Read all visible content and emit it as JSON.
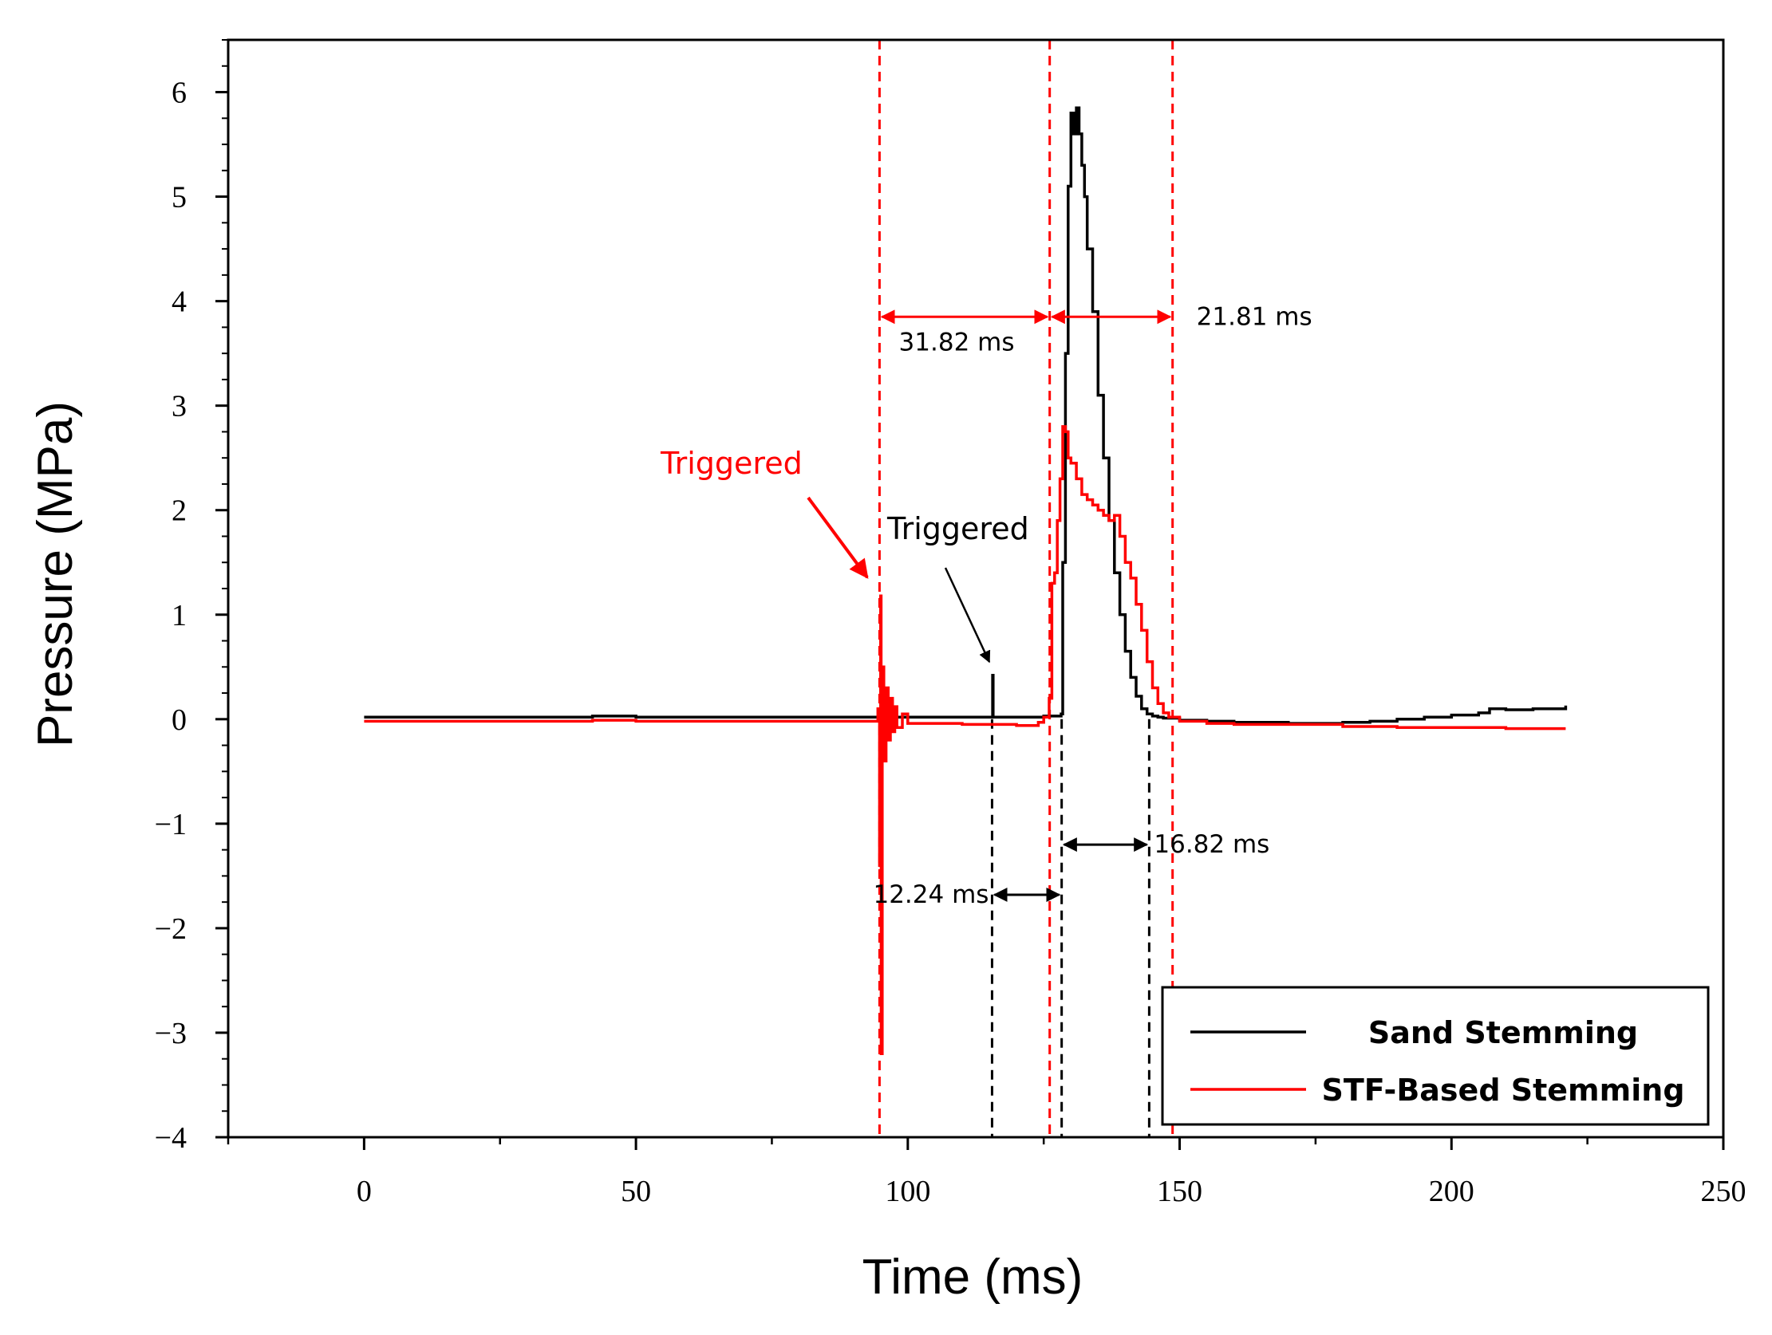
{
  "chart_data": {
    "type": "line",
    "title": "",
    "xlabel": "Time (ms)",
    "ylabel": "Pressure (MPa)",
    "xlim": [
      -25,
      250
    ],
    "ylim": [
      -4,
      6.5
    ],
    "xticks": [
      0,
      50,
      100,
      150,
      200,
      250
    ],
    "xtick_labels": [
      "0",
      "50",
      "100",
      "150",
      "200",
      "250"
    ],
    "yticks": [
      -4,
      -3,
      -2,
      -1,
      0,
      1,
      2,
      3,
      4,
      5,
      6
    ],
    "ytick_labels": [
      "−4",
      "−3",
      "−2",
      "−1",
      "0",
      "1",
      "2",
      "3",
      "4",
      "5",
      "6"
    ],
    "grid": false,
    "legend_position": "bottom-right",
    "colors": {
      "sand": "#000000",
      "stf": "#ff0000"
    },
    "series": [
      {
        "name": "Sand Stemming",
        "color": "#000000",
        "x": [
          0,
          20,
          40,
          42,
          50,
          60,
          70,
          80,
          90,
          95,
          100,
          110,
          115.5,
          115.6,
          115.7,
          116,
          120,
          125,
          127,
          128.2,
          128.5,
          129,
          129.5,
          130,
          130.5,
          131,
          131.5,
          132,
          132.5,
          133,
          134,
          135,
          136,
          137,
          138,
          139,
          140,
          141,
          142,
          143,
          144,
          145,
          146,
          147,
          150,
          155,
          160,
          170,
          180,
          185,
          190,
          195,
          200,
          205,
          207,
          210,
          215,
          221
        ],
        "y": [
          0.02,
          0.02,
          0.02,
          0.03,
          0.02,
          0.02,
          0.02,
          0.02,
          0.02,
          0.02,
          0.02,
          0.02,
          0.02,
          0.42,
          0.02,
          0.02,
          0.02,
          0.03,
          0.03,
          0.05,
          1.5,
          3.5,
          5.1,
          5.8,
          5.6,
          5.85,
          5.6,
          5.3,
          5.0,
          4.5,
          3.9,
          3.1,
          2.5,
          1.9,
          1.4,
          1.0,
          0.65,
          0.4,
          0.22,
          0.1,
          0.05,
          0.03,
          0.02,
          0.01,
          -0.01,
          -0.02,
          -0.03,
          -0.04,
          -0.03,
          -0.02,
          0.0,
          0.02,
          0.04,
          0.06,
          0.1,
          0.09,
          0.1,
          0.13
        ]
      },
      {
        "name": "STF-Based Stemming",
        "color": "#ff0000",
        "x": [
          0,
          20,
          40,
          42,
          50,
          60,
          70,
          80,
          90,
          94,
          94.5,
          94.8,
          95.0,
          95.1,
          95.3,
          95.6,
          96,
          96.4,
          96.8,
          97.2,
          97.6,
          98,
          99,
          100,
          110,
          120,
          124,
          125,
          126,
          126.5,
          127,
          127.5,
          128,
          128.5,
          129,
          129.5,
          130,
          131,
          132,
          133,
          134,
          135,
          136,
          137,
          138,
          139,
          140,
          141,
          142,
          143,
          144,
          145,
          146,
          147,
          148,
          150,
          155,
          160,
          170,
          180,
          190,
          200,
          210,
          221
        ],
        "y": [
          -0.02,
          -0.02,
          -0.02,
          -0.01,
          -0.02,
          -0.02,
          -0.02,
          -0.02,
          -0.02,
          -0.02,
          0.1,
          -1.4,
          1.18,
          -3.2,
          0.5,
          -0.4,
          0.3,
          -0.2,
          0.2,
          -0.12,
          0.12,
          -0.08,
          0.05,
          -0.04,
          -0.05,
          -0.06,
          -0.03,
          0.02,
          0.2,
          1.3,
          1.4,
          1.9,
          2.3,
          2.8,
          2.75,
          2.5,
          2.45,
          2.3,
          2.15,
          2.1,
          2.05,
          2.0,
          1.95,
          1.9,
          1.95,
          1.75,
          1.5,
          1.35,
          1.1,
          0.85,
          0.55,
          0.3,
          0.15,
          0.06,
          0.02,
          -0.02,
          -0.04,
          -0.05,
          -0.05,
          -0.07,
          -0.08,
          -0.08,
          -0.09,
          -0.09
        ]
      }
    ],
    "markers": {
      "red_dashed_lines_x": [
        94.8,
        126.1,
        148.7
      ],
      "black_dashed_lines": [
        {
          "x": 115.5,
          "from_y": 0,
          "to_y": -4
        },
        {
          "x": 128.3,
          "from_y": 0,
          "to_y": -4
        },
        {
          "x": 144.4,
          "from_y": 0,
          "to_y": -4
        }
      ]
    },
    "annotations": [
      {
        "id": "red-31",
        "text": "31.82 ms",
        "color": "#ff0000",
        "from_x": 94.8,
        "to_x": 126.1,
        "y": 3.85
      },
      {
        "id": "red-21",
        "text": "21.81 ms",
        "color": "#ff0000",
        "from_x": 126.1,
        "to_x": 148.7,
        "y": 3.85
      },
      {
        "id": "blk-16",
        "text": "16.82 ms",
        "color": "#000000",
        "from_x": 128.3,
        "to_x": 144.4,
        "y": -1.2
      },
      {
        "id": "blk-12",
        "text": "12.24 ms",
        "color": "#000000",
        "from_x": 115.5,
        "to_x": 128.3,
        "y": -1.68
      }
    ],
    "triggers": [
      {
        "id": "red-trig",
        "text": "Triggered",
        "color": "#ff0000"
      },
      {
        "id": "blk-trig",
        "text": "Triggered",
        "color": "#000000"
      }
    ]
  }
}
